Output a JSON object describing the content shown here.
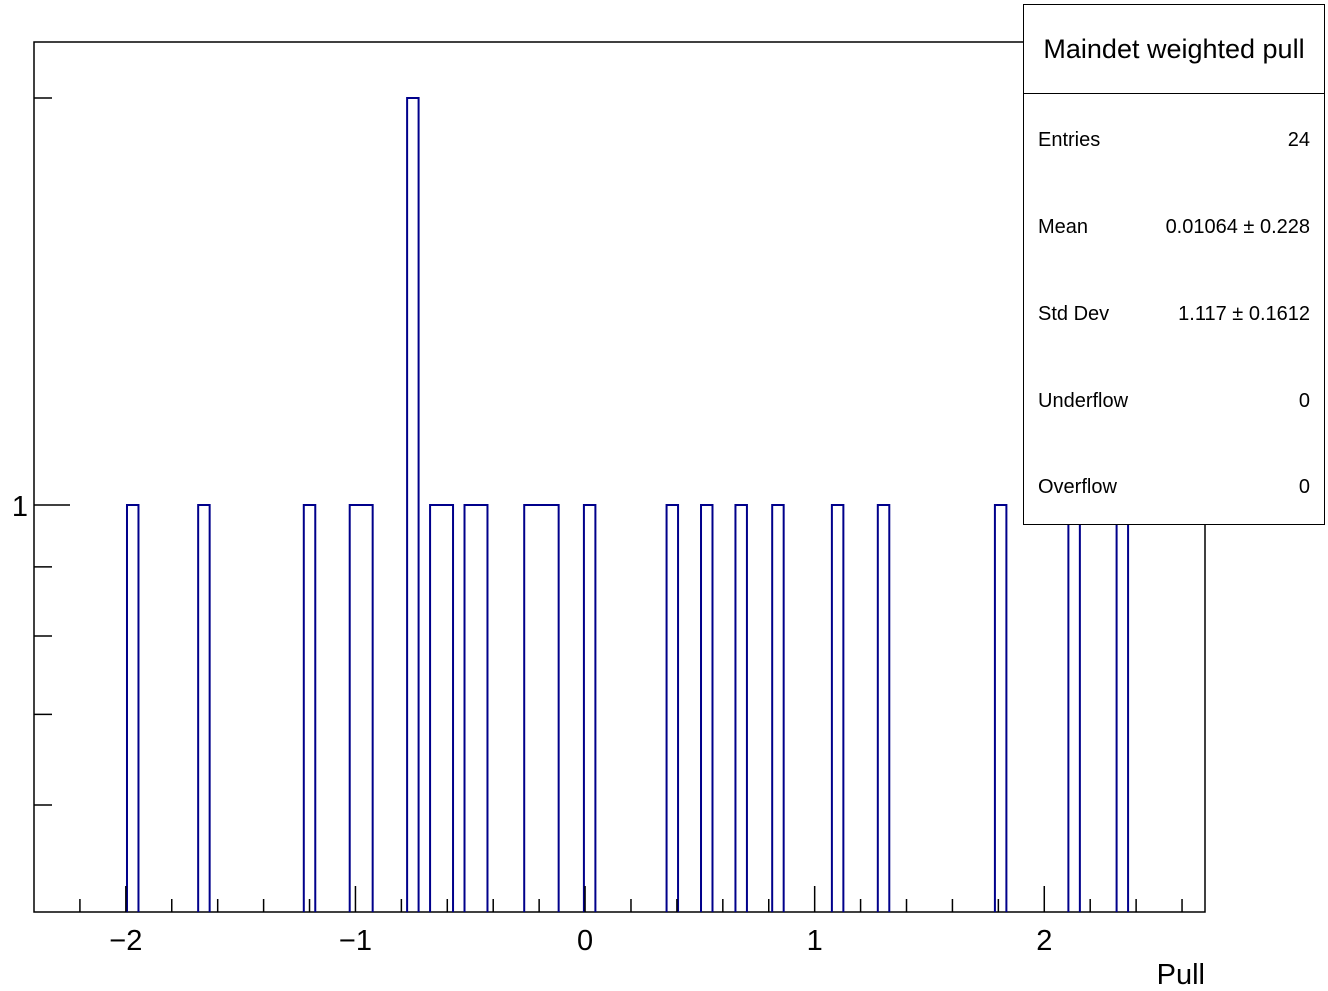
{
  "chart_data": {
    "type": "bar",
    "title": "Maindet weighted pull",
    "xlabel": "Pull",
    "ylabel": "",
    "log_y": true,
    "xlim": [
      -2.4,
      2.7
    ],
    "ylim": [
      0.5,
      2.2
    ],
    "x_ticks": [
      -2,
      -1,
      0,
      1,
      2
    ],
    "x_tick_labels": [
      "−2",
      "−1",
      "0",
      "1",
      "2"
    ],
    "y_ticks": [
      1
    ],
    "y_tick_labels": [
      "1"
    ],
    "bin_width": 0.05,
    "line_color": "#00008b",
    "bars": [
      {
        "x_low": -1.995,
        "x_high": -1.945,
        "value": 1
      },
      {
        "x_low": -1.685,
        "x_high": -1.635,
        "value": 1
      },
      {
        "x_low": -1.225,
        "x_high": -1.175,
        "value": 1
      },
      {
        "x_low": -1.025,
        "x_high": -0.925,
        "value": 1
      },
      {
        "x_low": -0.775,
        "x_high": -0.725,
        "value": 2
      },
      {
        "x_low": -0.675,
        "x_high": -0.575,
        "value": 1
      },
      {
        "x_low": -0.525,
        "x_high": -0.425,
        "value": 1
      },
      {
        "x_low": -0.265,
        "x_high": -0.115,
        "value": 1
      },
      {
        "x_low": -0.005,
        "x_high": 0.045,
        "value": 1
      },
      {
        "x_low": 0.355,
        "x_high": 0.405,
        "value": 1
      },
      {
        "x_low": 0.505,
        "x_high": 0.555,
        "value": 1
      },
      {
        "x_low": 0.655,
        "x_high": 0.705,
        "value": 1
      },
      {
        "x_low": 0.815,
        "x_high": 0.865,
        "value": 1
      },
      {
        "x_low": 1.075,
        "x_high": 1.125,
        "value": 1
      },
      {
        "x_low": 1.275,
        "x_high": 1.325,
        "value": 1
      },
      {
        "x_low": 1.785,
        "x_high": 1.835,
        "value": 1
      },
      {
        "x_low": 2.105,
        "x_high": 2.155,
        "value": 1
      },
      {
        "x_low": 2.315,
        "x_high": 2.365,
        "value": 1
      }
    ]
  },
  "stats_box": {
    "title": "Maindet weighted pull",
    "rows": [
      {
        "label": "Entries",
        "value": "24"
      },
      {
        "label": "Mean",
        "value": "0.01064 ±  0.228"
      },
      {
        "label": "Std Dev",
        "value": "1.117 ± 0.1612"
      },
      {
        "label": "Underflow",
        "value": "0"
      },
      {
        "label": "Overflow",
        "value": "0"
      }
    ]
  }
}
